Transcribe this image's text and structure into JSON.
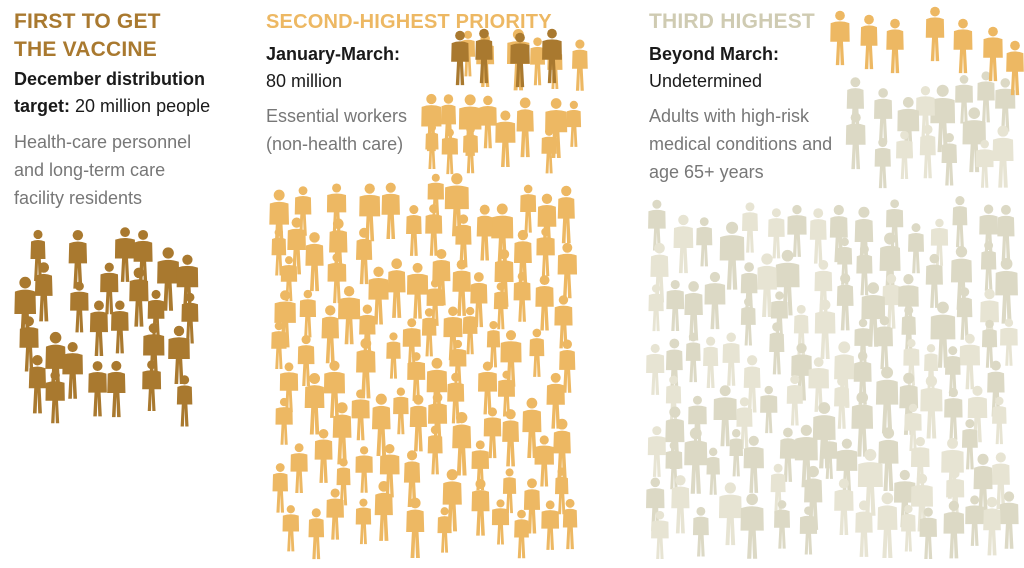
{
  "colors": {
    "tier1": "#a9792f",
    "tier2": "#edb863",
    "tier3": "#dcd9c5",
    "tier3_light": "#e7e4d3"
  },
  "columns": [
    {
      "heading": [
        "FIRST TO GET",
        "THE VACCINE"
      ],
      "target_label_lines": [
        "December distribution",
        "target:"
      ],
      "target_value": "20 million people",
      "description": [
        "Health-care personnel",
        "and long-term care",
        "facility residents"
      ],
      "icon": "person-silhouette-icon"
    },
    {
      "heading": [
        "SECOND-HIGHEST PRIORITY"
      ],
      "target_label": "January-March:",
      "target_value": "80 million",
      "description": [
        "Essential workers",
        "(non-health care)"
      ],
      "icon": "person-silhouette-icon"
    },
    {
      "heading": [
        "THIRD HIGHEST"
      ],
      "target_label": "Beyond March:",
      "target_value": "Undetermined",
      "description": [
        "Adults with high-risk",
        "medical conditions and",
        "age 65+ years"
      ],
      "icon": "person-silhouette-icon"
    }
  ]
}
